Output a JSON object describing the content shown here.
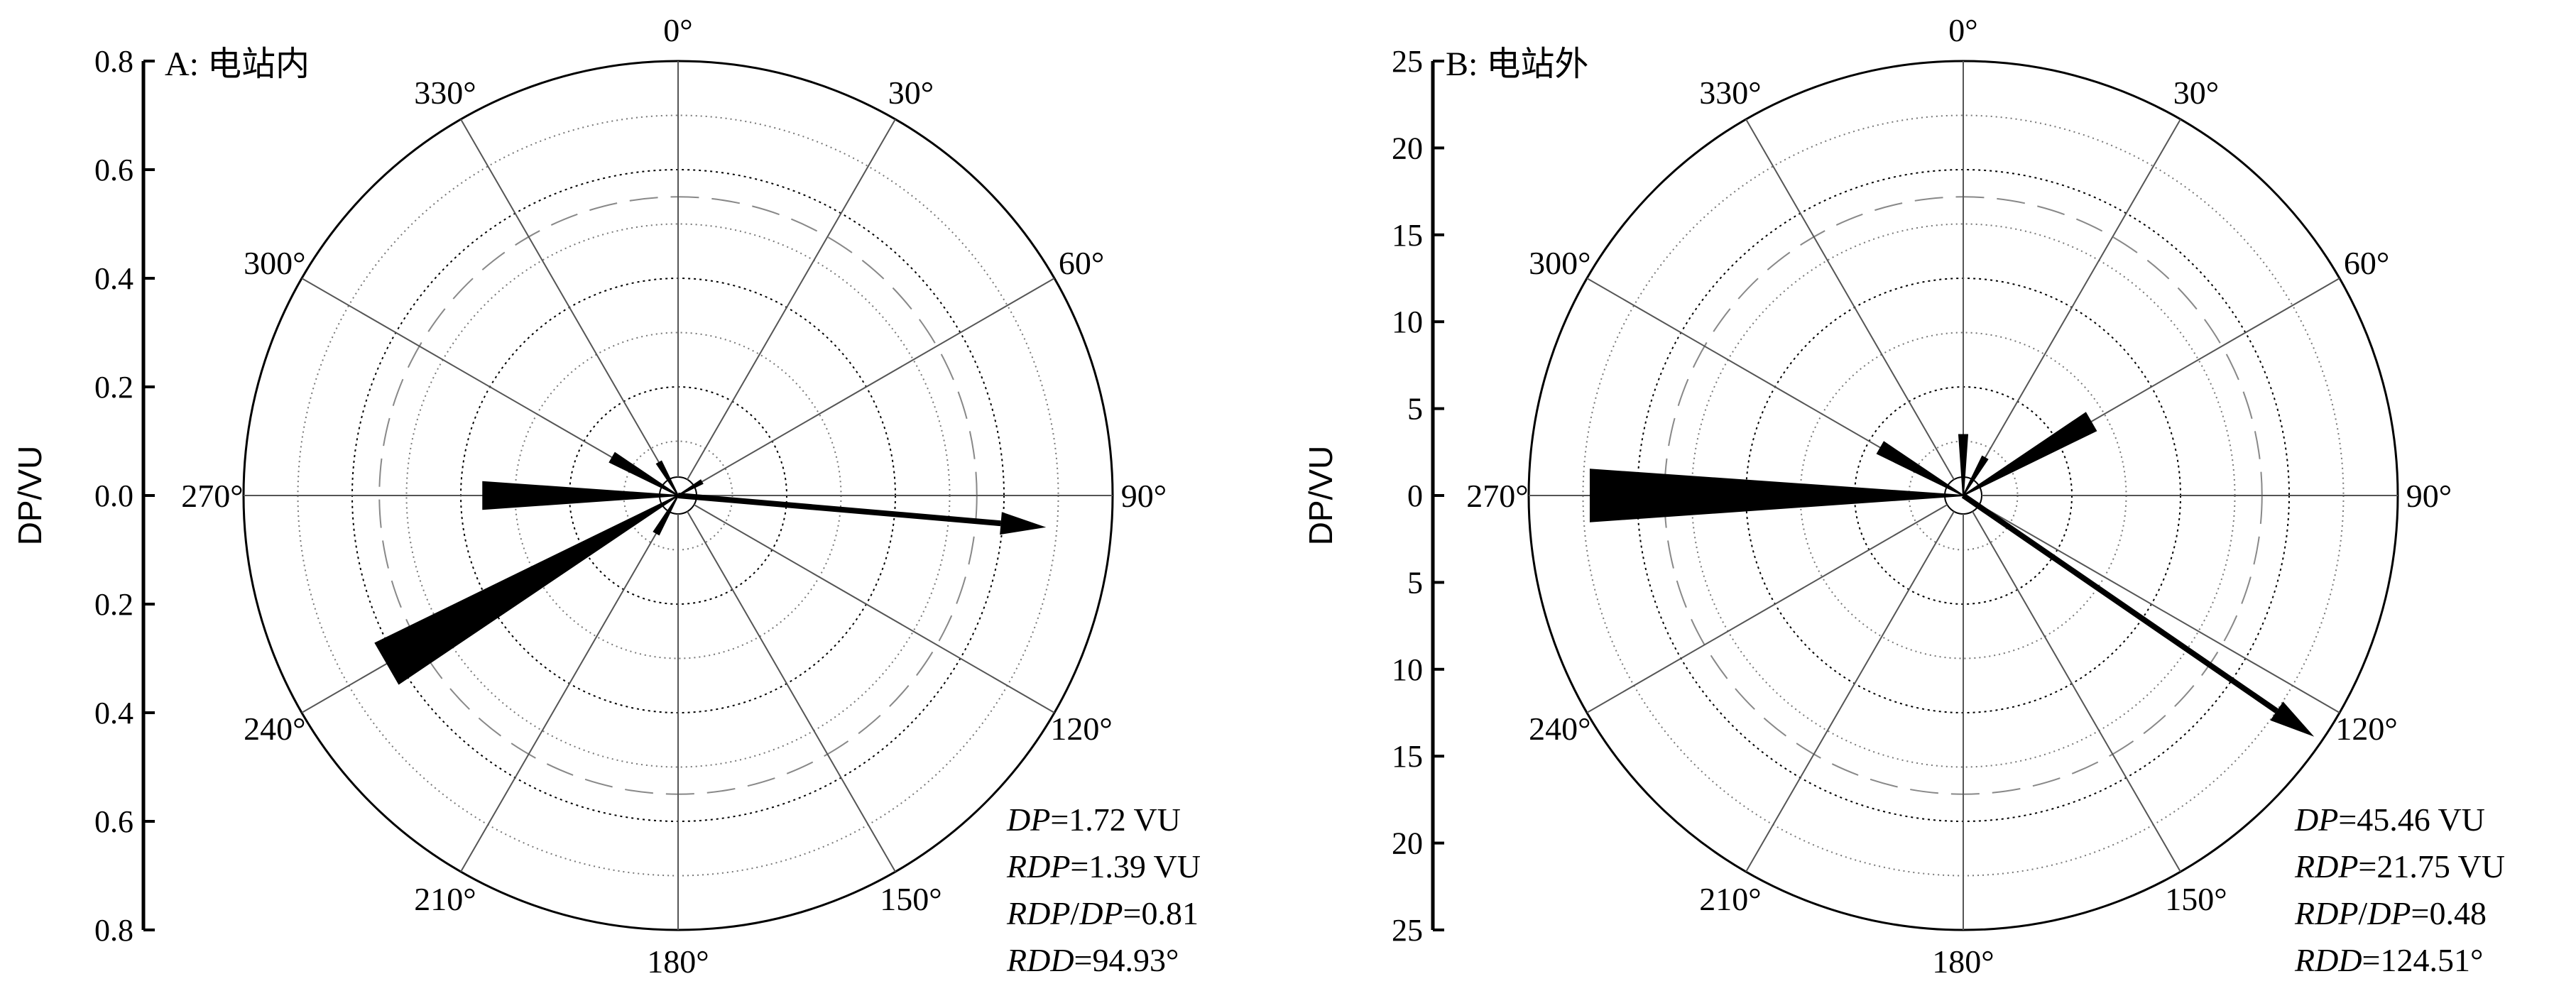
{
  "chart_data": [
    {
      "type": "polar-rose",
      "title": "A: 电站内",
      "ylabel": "DP/VU",
      "radial_ticks": [
        "0.8",
        "0.6",
        "0.4",
        "0.2",
        "0.0",
        "0.2",
        "0.4",
        "0.6",
        "0.8"
      ],
      "r_max": 0.8,
      "angle_labels": [
        "0°",
        "30°",
        "60°",
        "90°",
        "120°",
        "150°",
        "180°",
        "210°",
        "240°",
        "270°",
        "300°",
        "330°"
      ],
      "petals": [
        {
          "direction": 240,
          "value": 0.62
        },
        {
          "direction": 270,
          "value": 0.36
        },
        {
          "direction": 300,
          "value": 0.14
        },
        {
          "direction": 330,
          "value": 0.07
        },
        {
          "direction": 60,
          "value": 0.05
        },
        {
          "direction": 210,
          "value": 0.08
        }
      ],
      "resultant": {
        "direction": 94.93,
        "length": 0.68
      },
      "stats": {
        "dp_label": "DP",
        "dp_value": "=1.72 VU",
        "rdp_label": "RDP",
        "rdp_value": "=1.39 VU",
        "ratio_label_a": "RDP",
        "ratio_sep": "/",
        "ratio_label_b": "DP",
        "ratio_value": "=0.81",
        "rdd_label": "RDD",
        "rdd_value": "=94.93°"
      }
    },
    {
      "type": "polar-rose",
      "title": "B: 电站外",
      "ylabel": "DP/VU",
      "radial_ticks": [
        "25",
        "20",
        "15",
        "10",
        "5",
        "0",
        "5",
        "10",
        "15",
        "20",
        "25"
      ],
      "r_max": 25,
      "angle_labels": [
        "0°",
        "30°",
        "60°",
        "90°",
        "120°",
        "150°",
        "180°",
        "210°",
        "240°",
        "270°",
        "300°",
        "330°"
      ],
      "petals": [
        {
          "direction": 270,
          "value": 21.5
        },
        {
          "direction": 300,
          "value": 5.5
        },
        {
          "direction": 60,
          "value": 8.5
        },
        {
          "direction": 0,
          "value": 3.5
        },
        {
          "direction": 30,
          "value": 2.5
        }
      ],
      "resultant": {
        "direction": 124.51,
        "length": 24.5
      },
      "stats": {
        "dp_label": "DP",
        "dp_value": "=45.46 VU",
        "rdp_label": "RDP",
        "rdp_value": "=21.75 VU",
        "ratio_label_a": "RDP",
        "ratio_sep": "/",
        "ratio_label_b": "DP",
        "ratio_value": "=0.48",
        "rdd_label": "RDD",
        "rdd_value": "=124.51°"
      }
    }
  ]
}
